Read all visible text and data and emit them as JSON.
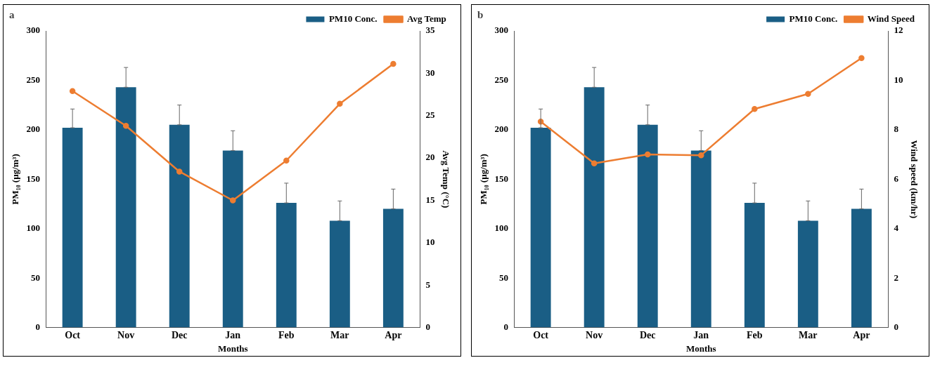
{
  "chart_data": [
    {
      "type": "bar",
      "title": "a",
      "xlabel": "Months",
      "ylabel": "PM₁₀ (µg/m³)",
      "y2label": "Avg Temp (°C)",
      "categories": [
        "Oct",
        "Nov",
        "Dec",
        "Jan",
        "Feb",
        "Mar",
        "Apr"
      ],
      "series": [
        {
          "name": "PM10 Conc.",
          "type": "bar",
          "color": "#1a5e85",
          "values": [
            202,
            243,
            205,
            179,
            126,
            108,
            120
          ],
          "errors": [
            [
              202,
              221
            ],
            [
              243,
              263
            ],
            [
              205,
              225
            ],
            [
              179,
              199
            ],
            [
              126,
              146
            ],
            [
              108,
              128
            ],
            [
              120,
              140
            ]
          ]
        },
        {
          "name": "Avg Temp",
          "type": "line",
          "axis": "y2",
          "color": "#ed7d31",
          "values": [
            27.9,
            23.8,
            18.4,
            15.0,
            19.7,
            26.4,
            31.1
          ]
        }
      ],
      "ylim": [
        0,
        300
      ],
      "yticks": [
        0,
        50,
        100,
        150,
        200,
        250,
        300
      ],
      "y2lim": [
        0,
        35
      ],
      "y2ticks": [
        0,
        5,
        10,
        15,
        20,
        25,
        30,
        35
      ],
      "legend": "top right",
      "marker": "circle",
      "grid": false
    },
    {
      "type": "bar",
      "title": "b",
      "xlabel": "Months",
      "ylabel": "PM₁₀ (µg/m³)",
      "y2label": "Wind speed (km/hr)",
      "categories": [
        "Oct",
        "Nov",
        "Dec",
        "Jan",
        "Feb",
        "Mar",
        "Apr"
      ],
      "series": [
        {
          "name": "PM10 Conc.",
          "type": "bar",
          "color": "#1a5e85",
          "values": [
            202,
            243,
            205,
            179,
            126,
            108,
            120
          ],
          "errors": [
            [
              202,
              221
            ],
            [
              243,
              263
            ],
            [
              205,
              225
            ],
            [
              179,
              199
            ],
            [
              126,
              146
            ],
            [
              108,
              128
            ],
            [
              120,
              140
            ]
          ]
        },
        {
          "name": "Wind Speed",
          "type": "line",
          "axis": "y2",
          "color": "#ed7d31",
          "values": [
            8.33,
            6.64,
            7.0,
            6.97,
            8.84,
            9.45,
            10.9
          ]
        }
      ],
      "ylim": [
        0,
        300
      ],
      "yticks": [
        0,
        50,
        100,
        150,
        200,
        250,
        300
      ],
      "y2lim": [
        0,
        12
      ],
      "y2ticks": [
        0,
        2,
        4,
        6,
        8,
        10,
        12
      ],
      "legend": "top right",
      "marker": "circle",
      "grid": false
    }
  ]
}
